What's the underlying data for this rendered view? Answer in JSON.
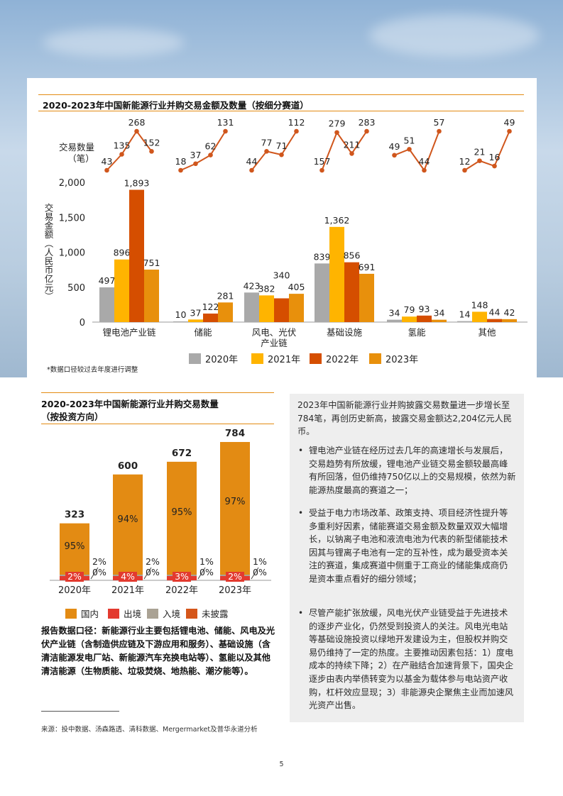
{
  "colors": {
    "c2020": "#a9a9a9",
    "c2021": "#ffb400",
    "c2022": "#d54e00",
    "c2023": "#e8900c",
    "line": "#d0561c",
    "guonei": "#e38b13",
    "chujing": "#e33a2f",
    "rujing": "#aaa294",
    "weipilu": "#d5561a"
  },
  "chart1": {
    "title": "2020-2023年中国新能源行业并购交易金额及数量（按细分赛道）",
    "count_label_line1": "交易数量",
    "count_label_line2": "（笔）",
    "ylabel": "交易金额（人民币亿元）",
    "footnote": "*数据口径较过去年度进行调整"
  },
  "chart2": {
    "title_line1": "2020-2023年中国新能源行业并购交易数量",
    "title_line2": "（按投资方向）"
  },
  "chart_data": [
    {
      "type": "bar",
      "title": "2020-2023年中国新能源行业并购交易金额及数量（按细分赛道）",
      "categories": [
        "锂电池产业链",
        "储能",
        "风电、光伏产业链",
        "基础设施",
        "氢能",
        "其他"
      ],
      "series": [
        {
          "name": "2020年",
          "values": [
            497,
            10,
            423,
            839,
            34,
            14
          ],
          "counts": [
            43,
            18,
            44,
            157,
            49,
            12
          ]
        },
        {
          "name": "2021年",
          "values": [
            896,
            37,
            382,
            1362,
            79,
            148
          ],
          "counts": [
            135,
            37,
            77,
            279,
            51,
            21
          ]
        },
        {
          "name": "2022年",
          "values": [
            1893,
            122,
            340,
            856,
            93,
            44
          ],
          "counts": [
            268,
            62,
            71,
            211,
            44,
            16
          ]
        },
        {
          "name": "2023年",
          "values": [
            751,
            281,
            405,
            691,
            34,
            42
          ],
          "counts": [
            152,
            131,
            112,
            283,
            57,
            49
          ]
        }
      ],
      "ylabel": "交易金额（人民币亿元）",
      "ylim": [
        0,
        2000
      ],
      "yticks": [
        "0",
        "500",
        "1,000",
        "1,500",
        "2,000"
      ],
      "value_labels": [
        [
          "497",
          "10",
          "423",
          "839",
          "34",
          "14"
        ],
        [
          "896",
          "37",
          "382",
          "1,362",
          "79",
          "148"
        ],
        [
          "1,893",
          "122",
          "340",
          "856",
          "93",
          "44"
        ],
        [
          "751",
          "281",
          "405",
          "691",
          "34",
          "42"
        ]
      ],
      "category_labels": [
        [
          "锂电池产业链"
        ],
        [
          "储能"
        ],
        [
          "风电、光伏",
          "产业链"
        ],
        [
          "基础设施"
        ],
        [
          "氢能"
        ],
        [
          "其他"
        ]
      ],
      "legend": [
        "2020年",
        "2021年",
        "2022年",
        "2023年"
      ],
      "legend_position": "bottom"
    },
    {
      "type": "bar",
      "title": "2020-2023年中国新能源行业并购交易数量（按投资方向）",
      "categories": [
        "2020年",
        "2021年",
        "2022年",
        "2023年"
      ],
      "totals": [
        323,
        600,
        672,
        784
      ],
      "total_labels": [
        "323",
        "600",
        "672",
        "784"
      ],
      "series": [
        {
          "name": "国内",
          "percent_labels": [
            "95%",
            "94%",
            "95%",
            "97%"
          ]
        },
        {
          "name": "出境",
          "percent_labels": [
            "2%",
            "4%",
            "3%",
            "2%"
          ]
        },
        {
          "name": "入境",
          "percent_labels": [
            "2%",
            "2%",
            "1%",
            "1%"
          ]
        },
        {
          "name": "未披露",
          "percent_labels": [
            "0%",
            "0%",
            "0%",
            "0%"
          ]
        }
      ],
      "legend": [
        "国内",
        "出境",
        "入境",
        "未披露"
      ],
      "legend_position": "bottom"
    }
  ],
  "right_text": {
    "intro": "2023年中国新能源行业并购披露交易数量进一步增长至784笔，再创历史新高，披露交易金额达2,204亿元人民币。",
    "bullet_char": "•",
    "bullets": [
      "锂电池产业链在经历过去几年的高速增长与发展后，交易趋势有所放缓，锂电池产业链交易金额较最高峰有所回落，但仍维持750亿以上的交易规模，依然为新能源热度最高的赛道之一；",
      "受益于电力市场改革、政策支持、项目经济性提升等多重利好因素，储能赛道交易金额及数量双双大幅增长，以钠离子电池和液流电池为代表的新型储能技术因其与锂离子电池有一定的互补性，成为最受资本关注的赛道，集成赛道中侧重于工商业的储能集成商仍是资本重点看好的细分领域；",
      "尽管产能扩张放缓，风电光伏产业链受益于先进技术的逐步产业化，仍然受到投资人的关注。风电光电站等基础设施投资以绿地开发建设为主，但股权并购交易仍维持了一定的热度。主要推动因素包括：1）度电成本的持续下降；2）在产融结合加速背景下，国央企逐步由表内举债转变为以基金为载体参与电站资产收购，杠杆效应显现；3）非能源央企聚焦主业而加速风光资产出售。"
    ]
  },
  "report_note": "报告数据口径：新能源行业主要包括锂电池、储能、风电及光伏产业链（含制造供应链及下游应用和服务）、基础设施（含清洁能源发电厂站、新能源汽车充换电站等）、氢能以及其他清洁能源（生物质能、垃圾焚烧、地热能、潮汐能等）。",
  "source": "来源：投中数据、汤森路透、清科数据、Mergermarket及普华永道分析",
  "page_number": "5"
}
